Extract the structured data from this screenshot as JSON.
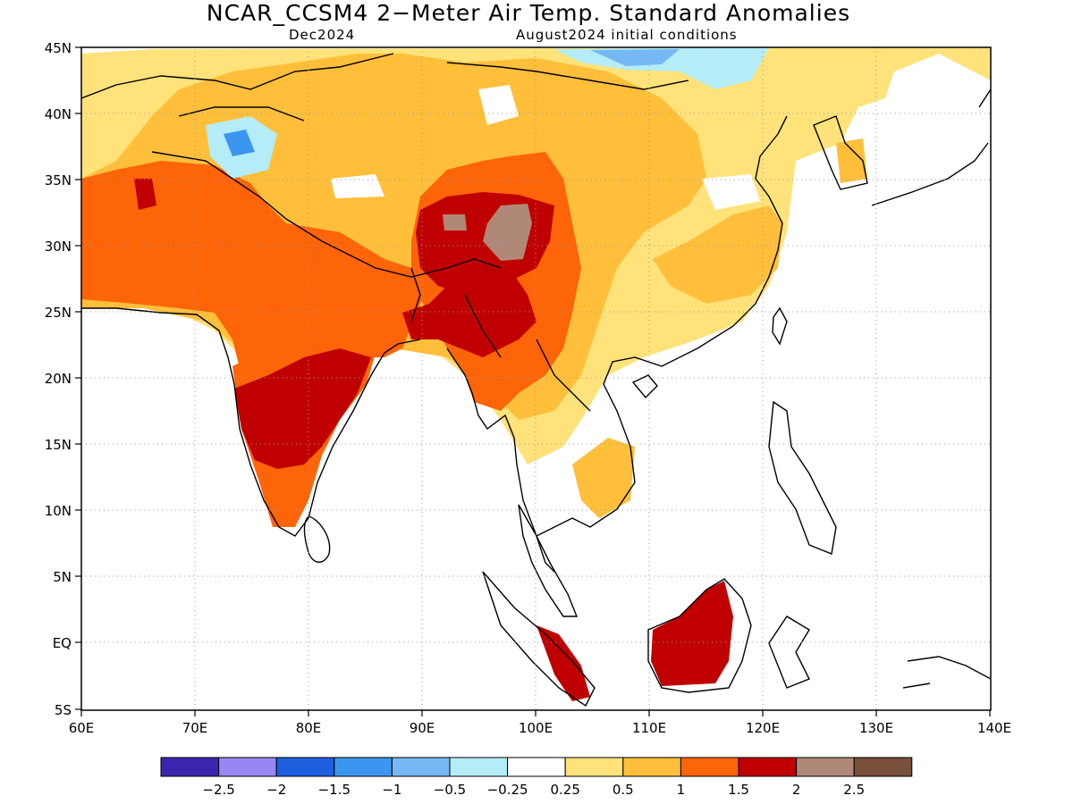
{
  "title": "NCAR_CCSM4 2−Meter Air Temp. Standard Anomalies",
  "valid_month": "Dec2024",
  "init_conditions": "August2024 initial conditions",
  "lon_ticks": [
    "60E",
    "70E",
    "80E",
    "90E",
    "100E",
    "110E",
    "120E",
    "130E",
    "140E"
  ],
  "lat_ticks": [
    "45N",
    "40N",
    "35N",
    "30N",
    "25N",
    "20N",
    "15N",
    "10N",
    "5N",
    "EQ",
    "5S"
  ],
  "legend": {
    "labels": [
      "−2.5",
      "−2",
      "−1.5",
      "−1",
      "−0.5",
      "−0.25",
      "0.25",
      "0.5",
      "1",
      "1.5",
      "2",
      "2.5"
    ],
    "colors": [
      "#3a25b0",
      "#9a86f2",
      "#1e5fe0",
      "#3c96f0",
      "#76b8f4",
      "#b4ecf8",
      "#ffffff",
      "#ffe27a",
      "#ffbf3a",
      "#fe6408",
      "#c00000",
      "#b08878",
      "#78503c"
    ]
  },
  "colors": {
    "pale_yellow": "#ffe27a",
    "light_orange": "#ffbf3a",
    "orange": "#fe6408",
    "dark_red": "#c00000",
    "brown_gray": "#b08878",
    "light_cyan": "#b4ecf8",
    "light_blue": "#76b8f4",
    "blue": "#3c96f0"
  }
}
